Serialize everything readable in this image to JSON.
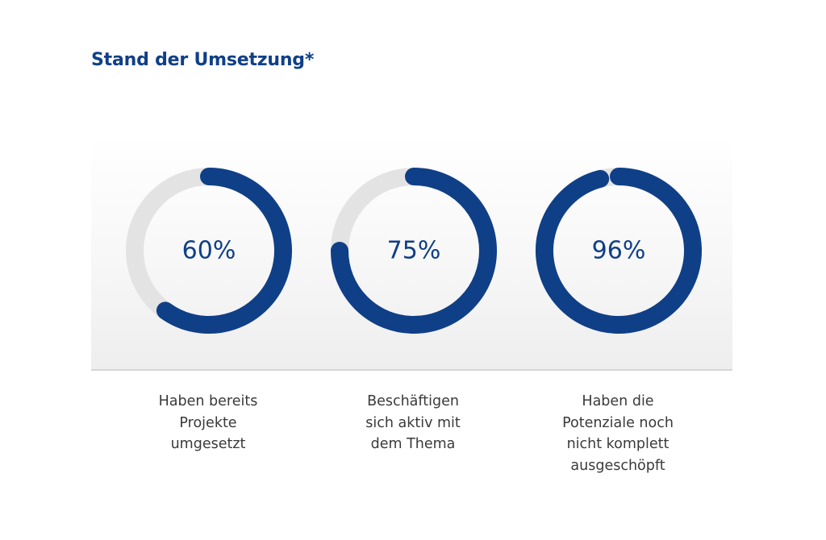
{
  "title": "Stand der Umsetzung*",
  "colors": {
    "accent": "#0f3f87",
    "track": "#e3e3e3",
    "text": "#3a3a3a"
  },
  "chart_data": {
    "type": "donut",
    "items": [
      {
        "value": 60,
        "label": "60%",
        "caption": [
          "Haben bereits",
          "Projekte",
          "umgesetzt"
        ]
      },
      {
        "value": 75,
        "label": "75%",
        "caption": [
          "Beschäftigen",
          "sich aktiv mit",
          "dem Thema"
        ]
      },
      {
        "value": 96,
        "label": "96%",
        "caption": [
          "Haben die",
          "Potenziale noch",
          "nicht komplett",
          "ausgeschöpft"
        ]
      }
    ]
  }
}
